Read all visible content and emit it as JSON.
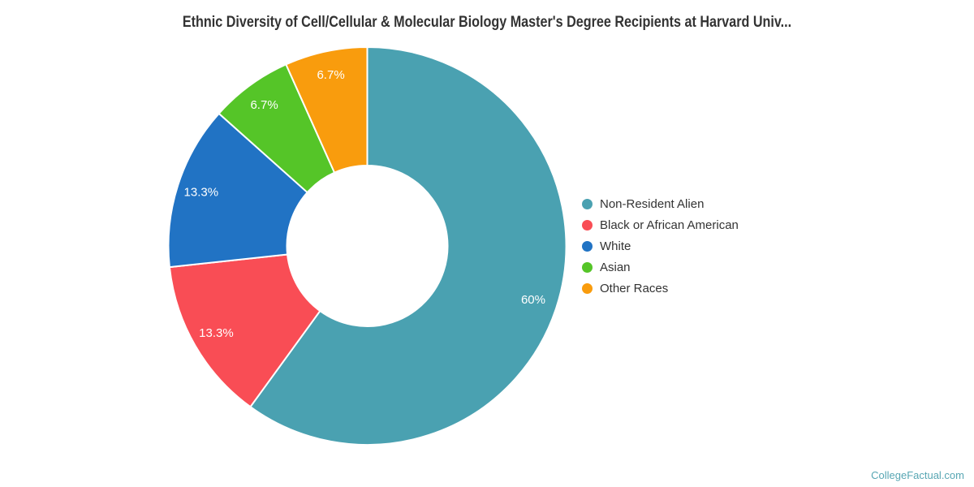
{
  "title": "Ethnic Diversity of Cell/Cellular & Molecular Biology Master's Degree Recipients at Harvard Univ...",
  "watermark": "CollegeFactual.com",
  "chart_data": {
    "type": "pie",
    "subtype": "donut",
    "title": "Ethnic Diversity of Cell/Cellular & Molecular Biology Master's Degree Recipients at Harvard Univ...",
    "legend_position": "right",
    "labels_inside_slices": true,
    "inner_radius_pct": 40,
    "start_angle_deg": 0,
    "direction": "clockwise",
    "slices": [
      {
        "label": "Non-Resident Alien",
        "value": 60,
        "display": "60%",
        "color": "#4AA1B1"
      },
      {
        "label": "Black or African American",
        "value": 13.3,
        "display": "13.3%",
        "color": "#F94D55"
      },
      {
        "label": "White",
        "value": 13.3,
        "display": "13.3%",
        "color": "#2173C4"
      },
      {
        "label": "Asian",
        "value": 6.7,
        "display": "6.7%",
        "color": "#55C528"
      },
      {
        "label": "Other Races",
        "value": 6.7,
        "display": "6.7%",
        "color": "#F99C0D"
      }
    ]
  }
}
